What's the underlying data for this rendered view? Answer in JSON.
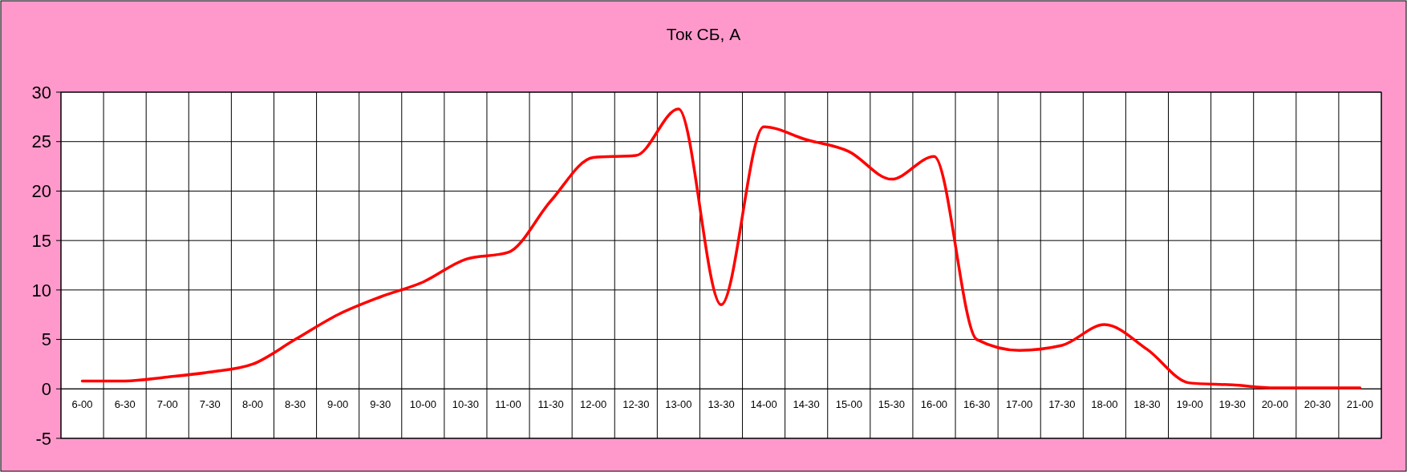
{
  "chart_data": {
    "type": "line",
    "title": "Ток СБ, А",
    "categories": [
      "6-00",
      "6-30",
      "7-00",
      "7-30",
      "8-00",
      "8-30",
      "9-00",
      "9-30",
      "10-00",
      "10-30",
      "11-00",
      "11-30",
      "12-00",
      "12-30",
      "13-00",
      "13-30",
      "14-00",
      "14-30",
      "15-00",
      "15-30",
      "16-00",
      "16-30",
      "17-00",
      "17-30",
      "18-00",
      "18-30",
      "19-00",
      "19-30",
      "20-00",
      "20-30",
      "21-00"
    ],
    "series": [
      {
        "color": "#ff0000",
        "values": [
          0.8,
          0.8,
          1.2,
          1.7,
          2.5,
          5.0,
          7.5,
          9.3,
          10.8,
          13.1,
          13.8,
          19.0,
          23.4,
          23.6,
          28.3,
          8.5,
          26.5,
          25.2,
          24.0,
          21.2,
          23.5,
          5.0,
          3.9,
          4.4,
          6.5,
          4.0,
          0.6,
          0.4,
          0.1,
          0.1,
          0.1
        ]
      }
    ],
    "ylim": [
      -5,
      30
    ],
    "yticks": [
      -5,
      0,
      5,
      10,
      15,
      20,
      25,
      30
    ],
    "grid": true,
    "marker": "none",
    "line_style": "solid"
  }
}
